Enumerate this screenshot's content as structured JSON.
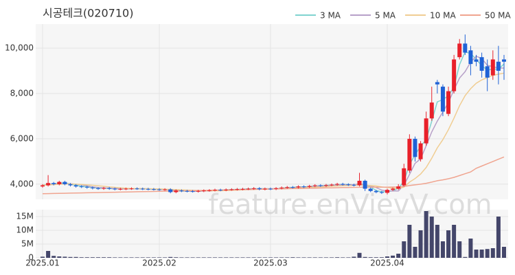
{
  "watermark": "feature.enVievV.com",
  "chart_data": [
    {
      "type": "candlestick",
      "title": "시공테크(020710)",
      "categories": [
        "2025.01",
        null,
        null,
        null,
        null,
        null,
        null,
        null,
        null,
        null,
        null,
        null,
        null,
        null,
        null,
        null,
        null,
        null,
        null,
        null,
        null,
        "2025.02",
        null,
        null,
        null,
        null,
        null,
        null,
        null,
        null,
        null,
        null,
        null,
        null,
        null,
        null,
        null,
        null,
        null,
        null,
        null,
        "2025.03",
        null,
        null,
        null,
        null,
        null,
        null,
        null,
        null,
        null,
        null,
        null,
        null,
        null,
        null,
        null,
        null,
        null,
        null,
        null,
        null,
        "2025.04",
        null,
        null,
        null,
        null,
        null,
        null,
        null,
        null,
        null,
        null,
        null,
        null,
        null,
        null,
        null,
        null,
        null,
        null,
        null,
        null,
        null
      ],
      "open": [
        3900,
        3950,
        4050,
        4000,
        4100,
        4000,
        3950,
        3900,
        3880,
        3850,
        3820,
        3800,
        3830,
        3800,
        3780,
        3790,
        3800,
        3810,
        3800,
        3790,
        3780,
        3770,
        3760,
        3770,
        3650,
        3720,
        3700,
        3690,
        3680,
        3700,
        3720,
        3730,
        3750,
        3740,
        3760,
        3770,
        3780,
        3790,
        3800,
        3820,
        3780,
        3800,
        3790,
        3820,
        3850,
        3870,
        3860,
        3900,
        3880,
        3920,
        3950,
        3930,
        3960,
        3980,
        4010,
        3990,
        3970,
        3950,
        4150,
        3800,
        3700,
        3650,
        3620,
        3750,
        3800,
        3950,
        4600,
        6000,
        5100,
        5800,
        6900,
        8500,
        8300,
        7100,
        8100,
        9600,
        10200,
        9900,
        9500,
        9600,
        9200,
        8800,
        9400,
        9500
      ],
      "high": [
        4000,
        4400,
        4100,
        4150,
        4150,
        4050,
        4000,
        3950,
        3930,
        3900,
        3870,
        3880,
        3880,
        3850,
        3840,
        3850,
        3860,
        3860,
        3850,
        3840,
        3830,
        3820,
        3820,
        3820,
        3770,
        3770,
        3750,
        3740,
        3750,
        3770,
        3780,
        3800,
        3800,
        3810,
        3820,
        3830,
        3840,
        3850,
        3870,
        3870,
        3850,
        3850,
        3870,
        3900,
        3920,
        3920,
        3950,
        3950,
        3970,
        4000,
        4000,
        4010,
        4030,
        4060,
        4060,
        4040,
        4020,
        4500,
        4200,
        3850,
        3750,
        3700,
        3800,
        3850,
        4000,
        4900,
        6200,
        6100,
        5900,
        7200,
        8300,
        8600,
        8400,
        8300,
        9700,
        10400,
        10600,
        10100,
        9700,
        9800,
        9500,
        9900,
        10100,
        9700
      ],
      "low": [
        3850,
        3900,
        3950,
        3950,
        3950,
        3900,
        3850,
        3830,
        3800,
        3770,
        3750,
        3750,
        3750,
        3730,
        3730,
        3740,
        3750,
        3750,
        3740,
        3730,
        3720,
        3710,
        3710,
        3600,
        3600,
        3650,
        3640,
        3630,
        3630,
        3650,
        3670,
        3680,
        3690,
        3690,
        3710,
        3720,
        3730,
        3740,
        3750,
        3730,
        3730,
        3740,
        3740,
        3770,
        3800,
        3810,
        3810,
        3830,
        3830,
        3870,
        3880,
        3880,
        3910,
        3930,
        3940,
        3920,
        3900,
        3900,
        3700,
        3650,
        3600,
        3570,
        3550,
        3700,
        3750,
        3900,
        4500,
        5000,
        5000,
        5700,
        6800,
        8000,
        7000,
        7000,
        8000,
        9500,
        9700,
        8800,
        9200,
        8700,
        8100,
        8600,
        8400,
        8600
      ],
      "close": [
        3950,
        4050,
        4000,
        4100,
        4000,
        3950,
        3900,
        3880,
        3850,
        3820,
        3800,
        3830,
        3800,
        3780,
        3790,
        3800,
        3810,
        3800,
        3790,
        3780,
        3770,
        3760,
        3770,
        3650,
        3720,
        3700,
        3690,
        3680,
        3700,
        3720,
        3730,
        3750,
        3740,
        3760,
        3770,
        3780,
        3790,
        3800,
        3820,
        3780,
        3800,
        3790,
        3820,
        3850,
        3870,
        3860,
        3900,
        3880,
        3920,
        3950,
        3930,
        3960,
        3980,
        4010,
        3990,
        3970,
        3950,
        4150,
        3800,
        3700,
        3650,
        3620,
        3750,
        3800,
        3900,
        4700,
        6000,
        5200,
        5800,
        6900,
        7600,
        8400,
        7200,
        8100,
        9500,
        10200,
        9800,
        9300,
        9400,
        9000,
        8700,
        9500,
        9000,
        9400
      ],
      "up_color": "#e8202a",
      "down_color": "#1f62d6",
      "series": [
        {
          "name": "3 MA",
          "color": "#7fd3cf",
          "values": [
            3950,
            4000,
            4000,
            4050,
            4050,
            4020,
            3950,
            3910,
            3880,
            3850,
            3820,
            3820,
            3810,
            3800,
            3790,
            3790,
            3800,
            3800,
            3800,
            3790,
            3780,
            3770,
            3770,
            3730,
            3710,
            3690,
            3700,
            3690,
            3690,
            3700,
            3720,
            3730,
            3740,
            3750,
            3760,
            3770,
            3780,
            3790,
            3800,
            3800,
            3800,
            3790,
            3800,
            3820,
            3850,
            3860,
            3880,
            3880,
            3900,
            3920,
            3930,
            3950,
            3960,
            3980,
            3990,
            3990,
            3970,
            4020,
            3970,
            3880,
            3720,
            3660,
            3670,
            3710,
            3820,
            4130,
            4870,
            5300,
            5670,
            5970,
            6770,
            7630,
            7730,
            7900,
            8270,
            9270,
            9830,
            9770,
            9500,
            9230,
            9030,
            9070,
            9070,
            9300
          ]
        },
        {
          "name": "5 MA",
          "color": "#b7a0c8",
          "values": [
            3950,
            3980,
            4000,
            4020,
            4020,
            4020,
            4000,
            3970,
            3920,
            3880,
            3850,
            3840,
            3820,
            3810,
            3800,
            3800,
            3800,
            3800,
            3800,
            3790,
            3790,
            3780,
            3770,
            3750,
            3730,
            3710,
            3700,
            3690,
            3690,
            3700,
            3700,
            3720,
            3730,
            3740,
            3750,
            3760,
            3770,
            3780,
            3790,
            3790,
            3800,
            3800,
            3800,
            3810,
            3830,
            3840,
            3860,
            3870,
            3880,
            3900,
            3920,
            3930,
            3950,
            3960,
            3970,
            3980,
            3980,
            4010,
            3970,
            3920,
            3850,
            3740,
            3700,
            3700,
            3700,
            3960,
            4430,
            4920,
            5120,
            5700,
            6300,
            6780,
            7180,
            7600,
            8160,
            8680,
            8960,
            9380,
            9640,
            9540,
            9240,
            9180,
            9120,
            9120
          ]
        },
        {
          "name": "10 MA",
          "color": "#f0cd92",
          "values": [
            3950,
            3970,
            3980,
            4000,
            4010,
            4010,
            4000,
            3990,
            3970,
            3950,
            3930,
            3910,
            3880,
            3860,
            3840,
            3820,
            3810,
            3810,
            3800,
            3800,
            3790,
            3790,
            3780,
            3770,
            3760,
            3750,
            3740,
            3730,
            3720,
            3710,
            3710,
            3710,
            3710,
            3720,
            3730,
            3740,
            3750,
            3760,
            3770,
            3780,
            3790,
            3790,
            3790,
            3800,
            3810,
            3820,
            3830,
            3840,
            3850,
            3870,
            3880,
            3890,
            3910,
            3920,
            3930,
            3940,
            3950,
            3970,
            3960,
            3940,
            3920,
            3880,
            3850,
            3830,
            3810,
            3870,
            4090,
            4250,
            4450,
            4740,
            5140,
            5600,
            5960,
            6400,
            6910,
            7460,
            7900,
            8210,
            8450,
            8600,
            8700,
            8800,
            8850,
            8900
          ]
        },
        {
          "name": "50 MA",
          "color": "#f0a48f",
          "values": [
            3580,
            3585,
            3590,
            3595,
            3600,
            3605,
            3610,
            3615,
            3620,
            3625,
            3630,
            3635,
            3640,
            3645,
            3650,
            3655,
            3660,
            3665,
            3670,
            3675,
            3680,
            3685,
            3690,
            3695,
            3700,
            3705,
            3710,
            3715,
            3720,
            3725,
            3730,
            3735,
            3740,
            3745,
            3750,
            3755,
            3760,
            3765,
            3770,
            3775,
            3780,
            3785,
            3790,
            3795,
            3800,
            3805,
            3810,
            3815,
            3820,
            3825,
            3830,
            3835,
            3840,
            3845,
            3850,
            3855,
            3860,
            3865,
            3870,
            3870,
            3870,
            3870,
            3870,
            3875,
            3880,
            3900,
            3940,
            3970,
            4000,
            4040,
            4090,
            4150,
            4190,
            4240,
            4300,
            4380,
            4460,
            4540,
            4700,
            4800,
            4900,
            5000,
            5100,
            5200
          ]
        }
      ],
      "ylim": [
        3330,
        11060
      ],
      "yticks": [
        {
          "value": 4000,
          "label": "4,000"
        },
        {
          "value": 6000,
          "label": "6,000"
        },
        {
          "value": 8000,
          "label": "8,000"
        },
        {
          "value": 10000,
          "label": "10,000"
        }
      ],
      "grid": true,
      "legend": "top-right"
    },
    {
      "type": "bar",
      "color": "#44466a",
      "categories": [
        "2025.01",
        null,
        null,
        null,
        null,
        null,
        null,
        null,
        null,
        null,
        null,
        null,
        null,
        null,
        null,
        null,
        null,
        null,
        null,
        null,
        null,
        "2025.02",
        null,
        null,
        null,
        null,
        null,
        null,
        null,
        null,
        null,
        null,
        null,
        null,
        null,
        null,
        null,
        null,
        null,
        null,
        null,
        "2025.03",
        null,
        null,
        null,
        null,
        null,
        null,
        null,
        null,
        null,
        null,
        null,
        null,
        null,
        null,
        null,
        null,
        null,
        null,
        null,
        null,
        "2025.04",
        null,
        null,
        null,
        null,
        null,
        null,
        null,
        null,
        null,
        null,
        null,
        null,
        null,
        null,
        null,
        null,
        null,
        null,
        null,
        null,
        null
      ],
      "values": [
        400000,
        2500000,
        700000,
        500000,
        400000,
        300000,
        300000,
        200000,
        200000,
        200000,
        200000,
        200000,
        200000,
        150000,
        150000,
        150000,
        150000,
        150000,
        150000,
        150000,
        150000,
        150000,
        150000,
        300000,
        200000,
        150000,
        150000,
        150000,
        150000,
        150000,
        150000,
        150000,
        150000,
        150000,
        150000,
        150000,
        150000,
        150000,
        150000,
        150000,
        150000,
        150000,
        150000,
        150000,
        150000,
        200000,
        150000,
        150000,
        150000,
        150000,
        150000,
        150000,
        150000,
        200000,
        150000,
        150000,
        400000,
        1800000,
        300000,
        200000,
        200000,
        200000,
        500000,
        800000,
        1500000,
        6000000,
        12000000,
        4000000,
        10000000,
        17000000,
        15000000,
        12000000,
        6000000,
        10000000,
        12000000,
        6000000,
        300000,
        7000000,
        3000000,
        3000000,
        3200000,
        3500000,
        15000000,
        4000000
      ],
      "ylim": [
        0,
        17500000
      ],
      "yticks": [
        0,
        {
          "value": 5000000,
          "label": "5M"
        },
        {
          "value": 10000000,
          "label": "10M"
        },
        {
          "value": 15000000,
          "label": "15M"
        }
      ],
      "grid": true
    }
  ]
}
